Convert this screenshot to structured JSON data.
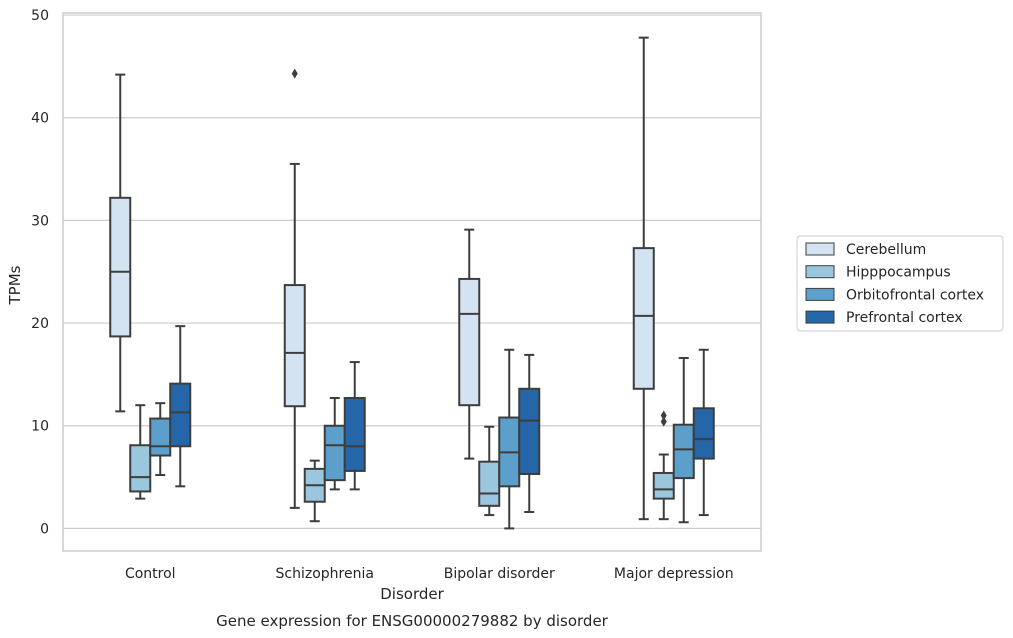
{
  "chart_data": {
    "type": "box",
    "caption": "Gene expression for ENSG00000279882 by disorder",
    "xlabel": "Disorder",
    "ylabel": "TPMs",
    "ylim": [
      -2.2,
      50.2
    ],
    "yticks": [
      0,
      10,
      20,
      30,
      40,
      50
    ],
    "grid": true,
    "legend_position": "right",
    "categories": [
      "Control",
      "Schizophrenia",
      "Bipolar disorder",
      "Major depression"
    ],
    "series": [
      {
        "name": "Cerebellum",
        "color": "#d4e3f2",
        "boxes": [
          {
            "whisker_low": 11.4,
            "q1": 18.7,
            "median": 25.0,
            "q3": 32.2,
            "whisker_high": 44.2,
            "outliers": []
          },
          {
            "whisker_low": 2.0,
            "q1": 11.9,
            "median": 17.1,
            "q3": 23.7,
            "whisker_high": 35.5,
            "outliers": [
              44.3
            ]
          },
          {
            "whisker_low": 6.8,
            "q1": 12.0,
            "median": 20.9,
            "q3": 24.3,
            "whisker_high": 29.1,
            "outliers": []
          },
          {
            "whisker_low": 0.9,
            "q1": 13.6,
            "median": 20.7,
            "q3": 27.3,
            "whisker_high": 47.8,
            "outliers": []
          }
        ]
      },
      {
        "name": "Hipppocampus",
        "color": "#9ac6de",
        "boxes": [
          {
            "whisker_low": 2.9,
            "q1": 3.6,
            "median": 5.0,
            "q3": 8.1,
            "whisker_high": 12.0,
            "outliers": []
          },
          {
            "whisker_low": 0.7,
            "q1": 2.6,
            "median": 4.2,
            "q3": 5.8,
            "whisker_high": 6.6,
            "outliers": []
          },
          {
            "whisker_low": 1.3,
            "q1": 2.2,
            "median": 3.4,
            "q3": 6.5,
            "whisker_high": 9.9,
            "outliers": []
          },
          {
            "whisker_low": 0.9,
            "q1": 2.9,
            "median": 3.8,
            "q3": 5.4,
            "whisker_high": 7.2,
            "outliers": [
              10.4,
              11.0
            ]
          }
        ]
      },
      {
        "name": "Orbitofrontal cortex",
        "color": "#5c9fca",
        "boxes": [
          {
            "whisker_low": 5.2,
            "q1": 7.1,
            "median": 8.0,
            "q3": 10.7,
            "whisker_high": 12.2,
            "outliers": []
          },
          {
            "whisker_low": 3.8,
            "q1": 4.7,
            "median": 8.1,
            "q3": 10.0,
            "whisker_high": 12.7,
            "outliers": []
          },
          {
            "whisker_low": 0.0,
            "q1": 4.1,
            "median": 7.4,
            "q3": 10.8,
            "whisker_high": 17.4,
            "outliers": []
          },
          {
            "whisker_low": 0.6,
            "q1": 4.9,
            "median": 7.7,
            "q3": 10.1,
            "whisker_high": 16.6,
            "outliers": []
          }
        ]
      },
      {
        "name": "Prefrontal cortex",
        "color": "#2466a8",
        "boxes": [
          {
            "whisker_low": 4.1,
            "q1": 8.0,
            "median": 11.3,
            "q3": 14.1,
            "whisker_high": 19.7,
            "outliers": []
          },
          {
            "whisker_low": 3.8,
            "q1": 5.6,
            "median": 8.0,
            "q3": 12.7,
            "whisker_high": 16.2,
            "outliers": []
          },
          {
            "whisker_low": 1.6,
            "q1": 5.3,
            "median": 10.5,
            "q3": 13.6,
            "whisker_high": 16.9,
            "outliers": []
          },
          {
            "whisker_low": 1.3,
            "q1": 6.8,
            "median": 8.7,
            "q3": 11.7,
            "whisker_high": 17.4,
            "outliers": []
          }
        ]
      }
    ]
  }
}
